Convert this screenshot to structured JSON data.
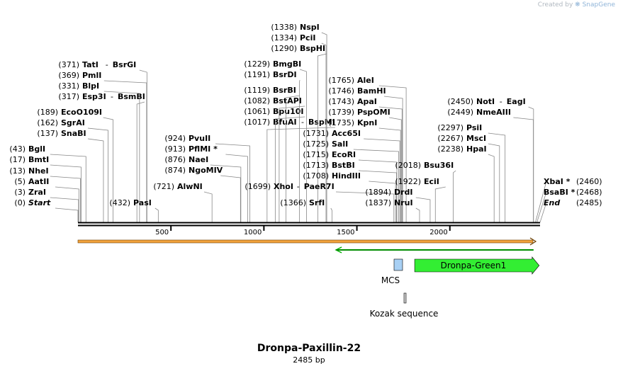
{
  "credit": {
    "prefix": "Created by",
    "brand": "SnapGene"
  },
  "title": "Dronpa-Paxillin-22",
  "subtitle": "2485 bp",
  "sequence_length": 2485,
  "ticks": [
    500,
    1000,
    1500,
    2000
  ],
  "sites": [
    {
      "pos": "(0)",
      "name": "Start",
      "bp": 0,
      "italic": true
    },
    {
      "pos": "(3)",
      "name": "ZraI",
      "bp": 3
    },
    {
      "pos": "(5)",
      "name": "AatII",
      "bp": 5
    },
    {
      "pos": "(13)",
      "name": "NheI",
      "bp": 13
    },
    {
      "pos": "(17)",
      "name": "BmtI",
      "bp": 17
    },
    {
      "pos": "(43)",
      "name": "BglI",
      "bp": 43
    },
    {
      "pos": "(137)",
      "name": "SnaBI",
      "bp": 137
    },
    {
      "pos": "(162)",
      "name": "SgrAI",
      "bp": 162
    },
    {
      "pos": "(189)",
      "name": "EcoO109I",
      "bp": 189
    },
    {
      "pos": "(317)",
      "name": "Esp3I",
      "name2": "BsmBI",
      "bp": 317
    },
    {
      "pos": "(331)",
      "name": "BlpI",
      "bp": 331
    },
    {
      "pos": "(369)",
      "name": "PmlI",
      "bp": 369
    },
    {
      "pos": "(371)",
      "name": "TatI",
      "name2": "BsrGI",
      "bp": 371
    },
    {
      "pos": "(432)",
      "name": "PasI",
      "bp": 432
    },
    {
      "pos": "(721)",
      "name": "AlwNI",
      "bp": 721
    },
    {
      "pos": "(874)",
      "name": "NgoMIV",
      "bp": 874
    },
    {
      "pos": "(876)",
      "name": "NaeI",
      "bp": 876
    },
    {
      "pos": "(913)",
      "name": "PflMI *",
      "bp": 913
    },
    {
      "pos": "(924)",
      "name": "PvuII",
      "bp": 924
    },
    {
      "pos": "(1017)",
      "name": "BfuAI",
      "name2": "BspMI",
      "bp": 1017
    },
    {
      "pos": "(1061)",
      "name": "Bpu10I",
      "bp": 1061
    },
    {
      "pos": "(1082)",
      "name": "BstAPI",
      "bp": 1082
    },
    {
      "pos": "(1119)",
      "name": "BsrBI",
      "bp": 1119
    },
    {
      "pos": "(1191)",
      "name": "BsrDI",
      "bp": 1191
    },
    {
      "pos": "(1229)",
      "name": "BmgBI",
      "bp": 1229
    },
    {
      "pos": "(1290)",
      "name": "BspHI",
      "bp": 1290
    },
    {
      "pos": "(1334)",
      "name": "PciI",
      "bp": 1334
    },
    {
      "pos": "(1338)",
      "name": "NspI",
      "bp": 1338
    },
    {
      "pos": "(1366)",
      "name": "SrfI",
      "bp": 1366
    },
    {
      "pos": "(1699)",
      "name": "XhoI",
      "name2": "PaeR7I",
      "bp": 1699
    },
    {
      "pos": "(1708)",
      "name": "HindIII",
      "bp": 1708
    },
    {
      "pos": "(1713)",
      "name": "BstBI",
      "bp": 1713
    },
    {
      "pos": "(1715)",
      "name": "EcoRI",
      "bp": 1715
    },
    {
      "pos": "(1725)",
      "name": "SalI",
      "bp": 1725
    },
    {
      "pos": "(1731)",
      "name": "Acc65I",
      "bp": 1731
    },
    {
      "pos": "(1735)",
      "name": "KpnI",
      "bp": 1735
    },
    {
      "pos": "(1739)",
      "name": "PspOMI",
      "bp": 1739
    },
    {
      "pos": "(1743)",
      "name": "ApaI",
      "bp": 1743
    },
    {
      "pos": "(1746)",
      "name": "BamHI",
      "bp": 1746
    },
    {
      "pos": "(1765)",
      "name": "AleI",
      "bp": 1765
    },
    {
      "pos": "(1837)",
      "name": "NruI",
      "bp": 1837
    },
    {
      "pos": "(1894)",
      "name": "DrdI",
      "bp": 1894
    },
    {
      "pos": "(1922)",
      "name": "EciI",
      "bp": 1922
    },
    {
      "pos": "(2018)",
      "name": "Bsu36I",
      "bp": 2018
    },
    {
      "pos": "(2238)",
      "name": "HpaI",
      "bp": 2238
    },
    {
      "pos": "(2267)",
      "name": "MscI",
      "bp": 2267
    },
    {
      "pos": "(2297)",
      "name": "PsiI",
      "bp": 2297
    },
    {
      "pos": "(2449)",
      "name": "NmeAIII",
      "bp": 2449
    },
    {
      "pos": "(2450)",
      "name": "NotI",
      "name2": "EagI",
      "bp": 2450
    },
    {
      "pos": "(2460)",
      "name": "XbaI *",
      "bp": 2460
    },
    {
      "pos": "(2468)",
      "name": "BsaBI *",
      "bp": 2468
    },
    {
      "pos": "(2485)",
      "name": "End",
      "bp": 2485,
      "italic": true
    }
  ],
  "features": [
    {
      "name": "Dronpa-Green1",
      "start_bp": 1765,
      "end_bp": 2450,
      "color": "#33ee33",
      "label_inside": true
    },
    {
      "name": "MCS",
      "start_bp": 1699,
      "end_bp": 1765,
      "color": "#a8d0f4"
    },
    {
      "name": "Kozak sequence",
      "start_bp": 1759,
      "end_bp": 1768,
      "color": "#cccccc"
    }
  ],
  "orf_color": "#f2a23c",
  "colors": {
    "backbone": "#000000",
    "orf_line": "#6b3e00",
    "green_arrow": "#00b000"
  }
}
